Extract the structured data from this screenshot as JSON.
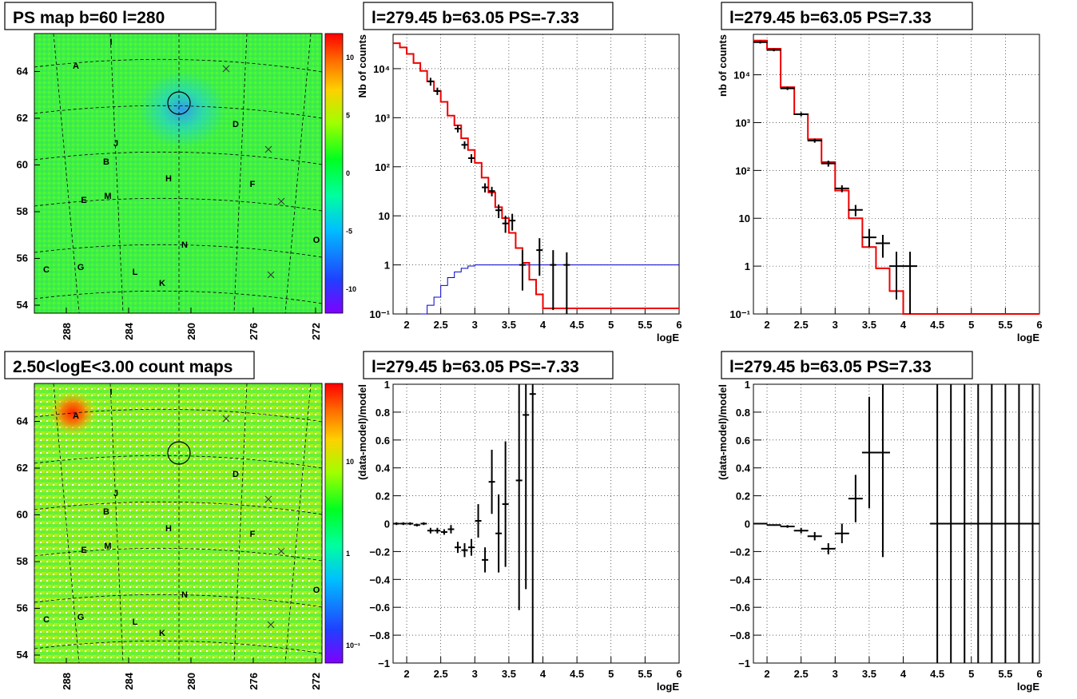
{
  "panels": {
    "ps_map": {
      "title": "PS map b=60 l=280",
      "lat_ticks": [
        "54",
        "56",
        "58",
        "60",
        "62",
        "64"
      ],
      "lon_ticks": [
        "288",
        "284",
        "280",
        "276",
        "272"
      ],
      "colorbar_ticks": [
        "10",
        "5",
        "0",
        "-5",
        "-10"
      ],
      "sources": [
        "A",
        "B",
        "C",
        "D",
        "E",
        "F",
        "G",
        "H",
        "I",
        "J",
        "K",
        "L",
        "M",
        "N",
        "O"
      ]
    },
    "count_map": {
      "title": "2.50<logE<3.00 count maps",
      "lat_ticks": [
        "54",
        "56",
        "58",
        "60",
        "62",
        "64"
      ],
      "lon_ticks": [
        "288",
        "284",
        "280",
        "276",
        "272"
      ],
      "colorbar_ticks": [
        "10",
        "1",
        "10⁻¹"
      ],
      "sources": [
        "A",
        "B",
        "C",
        "D",
        "E",
        "F",
        "G",
        "H",
        "I",
        "J",
        "K",
        "L",
        "M",
        "N",
        "O"
      ]
    }
  },
  "chart_data": [
    {
      "type": "line",
      "title": "l=279.45 b=63.05 PS=-7.33",
      "xlabel": "logE",
      "ylabel": "Nb of counts",
      "yscale": "log",
      "xlim": [
        1.8,
        6
      ],
      "ylim": [
        0.1,
        50000
      ],
      "x_ticks": [
        "2",
        "2.5",
        "3",
        "3.5",
        "4",
        "4.5",
        "5",
        "5.5",
        "6"
      ],
      "y_ticks": [
        "10⁻¹",
        "1",
        "10",
        "10²",
        "10³",
        "10⁴"
      ],
      "grid": true,
      "bin_edges": [
        1.8,
        1.9,
        2.0,
        2.1,
        2.2,
        2.3,
        2.4,
        2.5,
        2.6,
        2.7,
        2.8,
        2.9,
        3.0,
        3.1,
        3.2,
        3.3,
        3.4,
        3.5,
        3.6,
        3.7,
        3.8,
        3.9,
        4.0,
        6.0
      ],
      "model": [
        33000,
        27000,
        20000,
        13000,
        9000,
        5500,
        3500,
        2100,
        1100,
        700,
        380,
        220,
        120,
        60,
        30,
        15,
        9,
        4.5,
        2.2,
        1.1,
        0.5,
        0.25,
        0.13
      ],
      "exposure_curve": {
        "x": [
          2.2,
          2.3,
          2.4,
          2.5,
          2.6,
          2.7,
          2.8,
          2.9,
          3.0,
          6.0
        ],
        "y": [
          0.1,
          0.15,
          0.22,
          0.38,
          0.55,
          0.72,
          0.85,
          0.95,
          1.0,
          1.0
        ]
      },
      "points": [
        {
          "x": 2.35,
          "y": 5500,
          "lo": 4500,
          "hi": 6500
        },
        {
          "x": 2.45,
          "y": 3500,
          "lo": 2900,
          "hi": 4100
        },
        {
          "x": 2.75,
          "y": 600,
          "lo": 500,
          "hi": 700
        },
        {
          "x": 2.85,
          "y": 280,
          "lo": 230,
          "hi": 330
        },
        {
          "x": 2.95,
          "y": 150,
          "lo": 120,
          "hi": 180
        },
        {
          "x": 3.15,
          "y": 38,
          "lo": 30,
          "hi": 46
        },
        {
          "x": 3.25,
          "y": 32,
          "lo": 25,
          "hi": 39
        },
        {
          "x": 3.35,
          "y": 13,
          "lo": 9,
          "hi": 17
        },
        {
          "x": 3.45,
          "y": 7,
          "lo": 4.5,
          "hi": 10
        },
        {
          "x": 3.55,
          "y": 8,
          "lo": 5,
          "hi": 11
        },
        {
          "x": 3.7,
          "y": 1,
          "lo": 0.3,
          "hi": 2
        },
        {
          "x": 3.95,
          "y": 2,
          "lo": 0.6,
          "hi": 3.5
        },
        {
          "x": 4.15,
          "y": 1,
          "lo": 0.12,
          "hi": 2
        },
        {
          "x": 4.35,
          "y": 1,
          "lo": 0.1,
          "hi": 1.8
        }
      ]
    },
    {
      "type": "line",
      "title": "l=279.45 b=63.05 PS=7.33",
      "xlabel": "logE",
      "ylabel": "nb of counts",
      "yscale": "log",
      "xlim": [
        1.8,
        6
      ],
      "ylim": [
        0.1,
        70000
      ],
      "x_ticks": [
        "2",
        "2.5",
        "3",
        "3.5",
        "4",
        "4.5",
        "5",
        "5.5",
        "6"
      ],
      "y_ticks": [
        "10⁻¹",
        "1",
        "10",
        "10²",
        "10³",
        "10⁴"
      ],
      "grid": true,
      "bin_edges": [
        1.8,
        2.0,
        2.2,
        2.4,
        2.6,
        2.8,
        3.0,
        3.2,
        3.4,
        3.6,
        3.8,
        4.0,
        6.0
      ],
      "model": [
        52000,
        35000,
        5500,
        1500,
        450,
        150,
        38,
        10,
        2.5,
        0.9,
        0.3,
        0.1
      ],
      "points": [
        {
          "x": 1.9,
          "y": 48000,
          "lo": 45000,
          "hi": 51000
        },
        {
          "x": 2.1,
          "y": 33000,
          "lo": 31000,
          "hi": 35000
        },
        {
          "x": 2.3,
          "y": 5200,
          "lo": 4800,
          "hi": 5600
        },
        {
          "x": 2.5,
          "y": 1500,
          "lo": 1350,
          "hi": 1650
        },
        {
          "x": 2.7,
          "y": 420,
          "lo": 380,
          "hi": 460
        },
        {
          "x": 2.9,
          "y": 140,
          "lo": 120,
          "hi": 160
        },
        {
          "x": 3.1,
          "y": 42,
          "lo": 35,
          "hi": 49
        },
        {
          "x": 3.3,
          "y": 15,
          "lo": 11,
          "hi": 19
        },
        {
          "x": 3.5,
          "y": 4,
          "lo": 2.5,
          "hi": 6
        },
        {
          "x": 3.7,
          "y": 3,
          "lo": 1.5,
          "hi": 4.5
        },
        {
          "x": 3.9,
          "y": 1,
          "lo": 0.2,
          "hi": 2
        },
        {
          "x": 4.1,
          "y": 1,
          "lo": 0.1,
          "hi": 2
        }
      ]
    },
    {
      "type": "scatter",
      "title": "l=279.45 b=63.05 PS=-7.33",
      "xlabel": "logE",
      "ylabel": "(data-model)/model",
      "xlim": [
        1.8,
        6
      ],
      "ylim": [
        -1,
        1
      ],
      "x_ticks": [
        "2",
        "2.5",
        "3",
        "3.5",
        "4",
        "4.5",
        "5",
        "5.5",
        "6"
      ],
      "y_ticks": [
        "−1",
        "−0.8",
        "−0.6",
        "−0.4",
        "−0.2",
        "0",
        "0.2",
        "0.4",
        "0.6",
        "0.8",
        "1"
      ],
      "grid": true,
      "points": [
        {
          "x": 1.85,
          "y": 0.0,
          "e": 0.01
        },
        {
          "x": 1.95,
          "y": 0.0,
          "e": 0.01
        },
        {
          "x": 2.05,
          "y": 0.0,
          "e": 0.01
        },
        {
          "x": 2.15,
          "y": -0.01,
          "e": 0.01
        },
        {
          "x": 2.25,
          "y": 0.0,
          "e": 0.01
        },
        {
          "x": 2.35,
          "y": -0.05,
          "e": 0.02
        },
        {
          "x": 2.45,
          "y": -0.05,
          "e": 0.02
        },
        {
          "x": 2.55,
          "y": -0.06,
          "e": 0.02
        },
        {
          "x": 2.65,
          "y": -0.04,
          "e": 0.03
        },
        {
          "x": 2.75,
          "y": -0.17,
          "e": 0.04
        },
        {
          "x": 2.85,
          "y": -0.19,
          "e": 0.05
        },
        {
          "x": 2.95,
          "y": -0.17,
          "e": 0.06
        },
        {
          "x": 3.05,
          "y": 0.02,
          "e": 0.12
        },
        {
          "x": 3.15,
          "y": -0.26,
          "e": 0.09
        },
        {
          "x": 3.25,
          "y": 0.3,
          "e": 0.23
        },
        {
          "x": 3.35,
          "y": -0.07,
          "e": 0.28
        },
        {
          "x": 3.45,
          "y": 0.14,
          "e": 0.45
        },
        {
          "x": 3.65,
          "y": 0.31,
          "e": 0.93
        },
        {
          "x": 3.75,
          "y": 0.78,
          "e": 1.25
        },
        {
          "x": 3.85,
          "y": 0.93,
          "e": 2.0
        }
      ]
    },
    {
      "type": "scatter",
      "title": "l=279.45 b=63.05 PS=7.33",
      "xlabel": "logE",
      "ylabel": "(data-model)/model",
      "xlim": [
        1.8,
        6
      ],
      "ylim": [
        -1,
        1
      ],
      "x_ticks": [
        "2",
        "2.5",
        "3",
        "3.5",
        "4",
        "4.5",
        "5",
        "5.5",
        "6"
      ],
      "y_ticks": [
        "−1",
        "−0.8",
        "−0.6",
        "−0.4",
        "−0.2",
        "0",
        "0.2",
        "0.4",
        "0.6",
        "0.8",
        "1"
      ],
      "grid": true,
      "points": [
        {
          "x": 1.9,
          "y": 0.0,
          "e": 0.005
        },
        {
          "x": 2.1,
          "y": -0.01,
          "e": 0.005
        },
        {
          "x": 2.3,
          "y": -0.02,
          "e": 0.01
        },
        {
          "x": 2.5,
          "y": -0.05,
          "e": 0.02
        },
        {
          "x": 2.7,
          "y": -0.09,
          "e": 0.03
        },
        {
          "x": 2.9,
          "y": -0.18,
          "e": 0.04
        },
        {
          "x": 3.1,
          "y": -0.07,
          "e": 0.07
        },
        {
          "x": 3.3,
          "y": 0.18,
          "e": 0.17
        },
        {
          "x": 3.5,
          "y": 0.51,
          "e": 0.4
        },
        {
          "x": 3.7,
          "y": 0.51,
          "e": 0.75
        },
        {
          "x": 4.5,
          "y": 0,
          "e": 3
        },
        {
          "x": 4.7,
          "y": 0,
          "e": 3
        },
        {
          "x": 4.9,
          "y": 0,
          "e": 3
        },
        {
          "x": 5.1,
          "y": 0,
          "e": 3
        },
        {
          "x": 5.3,
          "y": 0,
          "e": 3
        },
        {
          "x": 5.5,
          "y": 0,
          "e": 3
        },
        {
          "x": 5.7,
          "y": 0,
          "e": 3
        },
        {
          "x": 5.9,
          "y": 0,
          "e": 3
        }
      ]
    }
  ]
}
